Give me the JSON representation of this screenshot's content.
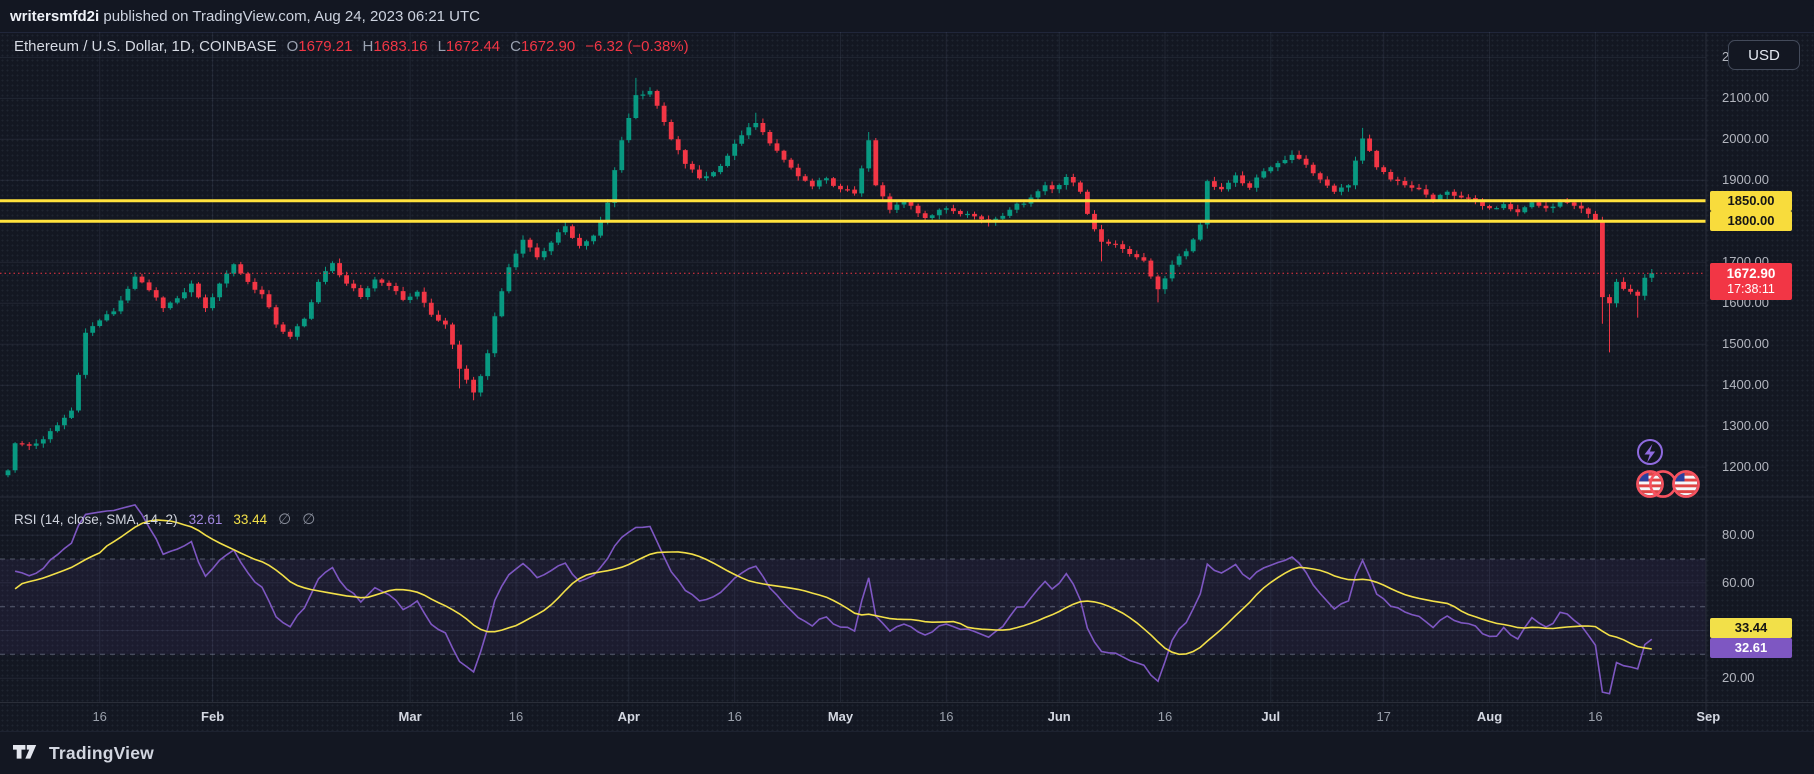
{
  "topbar": {
    "username": "writersmfd2i",
    "suffix": " published on TradingView.com, Aug 24, 2023 06:21 UTC"
  },
  "header": {
    "symbol_line": "Ethereum / U.S. Dollar, 1D, COINBASE",
    "o_key": "O",
    "o_val": "1679.21",
    "h_key": "H",
    "h_val": "1683.16",
    "l_key": "L",
    "l_val": "1672.44",
    "c_key": "C",
    "c_val": "1672.90",
    "change": "−6.32 (−0.38%)"
  },
  "currency_button": "USD",
  "price_axis": {
    "tick_labels": [
      "2200.00",
      "2100.00",
      "2000.00",
      "1900.00",
      "1800.00",
      "1700.00",
      "1600.00",
      "1500.00",
      "1400.00",
      "1300.00",
      "1200.00"
    ],
    "support_labels": [
      "1850.00",
      "1800.00"
    ],
    "last_price_label": "1672.90",
    "countdown": "17:38:11"
  },
  "rsi_pane": {
    "title": "RSI (14, close, SMA, 14, 2)",
    "rsi_value": "32.61",
    "ma_value": "33.44",
    "slot3": "∅",
    "slot4": "∅",
    "axis_tick_labels": [
      "80.00",
      "60.00",
      "40.00",
      "20.00"
    ],
    "rsi_label": "32.61",
    "ma_label": "33.44"
  },
  "footer": {
    "brand": "TradingView"
  },
  "colors": {
    "bg": "#131722",
    "up": "#089981",
    "down": "#f23645",
    "support_line": "#ffe13d",
    "support_label_bg": "#f8dc3c",
    "last_price": "#f23645",
    "rsi_line": "#7e57c2",
    "rsi_ma_line": "#f2e049",
    "grid": "rgba(160,173,204,0.10)",
    "dashed_level": "rgba(160,170,190,0.45)",
    "axis_text": "#b2b5be"
  },
  "chart_data": {
    "type": "candlestick",
    "title": "Ethereum / U.S. Dollar, 1D, COINBASE",
    "x_axis": "daily candles, Jan 2023 – Sep 2023 (day 0 = Jan 3, 2023)",
    "y_axis": "price (USD)",
    "ylim": [
      1127,
      2262
    ],
    "price_gridlines": [
      2200,
      2100,
      2000,
      1900,
      1800,
      1700,
      1600,
      1500,
      1400,
      1300,
      1200
    ],
    "support_levels": [
      1850,
      1800
    ],
    "last": {
      "open": 1679.21,
      "high": 1683.16,
      "low": 1672.44,
      "close": 1672.9,
      "change": -6.32,
      "change_pct": -0.38
    },
    "first_open": 1180,
    "close_anchors": [
      [
        0,
        1192
      ],
      [
        1,
        1258
      ],
      [
        3,
        1252
      ],
      [
        5,
        1268
      ],
      [
        7,
        1302
      ],
      [
        9,
        1338
      ],
      [
        10,
        1425
      ],
      [
        11,
        1528
      ],
      [
        13,
        1558
      ],
      [
        15,
        1580
      ],
      [
        17,
        1635
      ],
      [
        18,
        1665
      ],
      [
        20,
        1632
      ],
      [
        22,
        1588
      ],
      [
        24,
        1612
      ],
      [
        26,
        1648
      ],
      [
        28,
        1588
      ],
      [
        30,
        1648
      ],
      [
        32,
        1695
      ],
      [
        34,
        1652
      ],
      [
        36,
        1622
      ],
      [
        38,
        1548
      ],
      [
        40,
        1518
      ],
      [
        42,
        1562
      ],
      [
        44,
        1652
      ],
      [
        46,
        1698
      ],
      [
        48,
        1648
      ],
      [
        50,
        1615
      ],
      [
        52,
        1658
      ],
      [
        54,
        1642
      ],
      [
        56,
        1608
      ],
      [
        58,
        1628
      ],
      [
        60,
        1572
      ],
      [
        62,
        1548
      ],
      [
        64,
        1440,
        1392
      ],
      [
        66,
        1382,
        1363
      ],
      [
        67,
        1422
      ],
      [
        68,
        1478
      ],
      [
        69,
        1568
      ],
      [
        71,
        1688
      ],
      [
        73,
        1755
      ],
      [
        75,
        1712
      ],
      [
        77,
        1748
      ],
      [
        79,
        1788
      ],
      [
        81,
        1740
      ],
      [
        83,
        1765
      ],
      [
        84,
        1800
      ],
      [
        85,
        1845
      ],
      [
        86,
        1925
      ],
      [
        87,
        1998
      ],
      [
        88,
        2052
      ],
      [
        89,
        2108,
        null,
        2150
      ],
      [
        91,
        2118
      ],
      [
        92,
        2082
      ],
      [
        94,
        2000
      ],
      [
        96,
        1940
      ],
      [
        98,
        1905
      ],
      [
        100,
        1920
      ],
      [
        102,
        1960
      ],
      [
        104,
        2010
      ],
      [
        106,
        2040,
        null,
        2065
      ],
      [
        108,
        1990
      ],
      [
        110,
        1950
      ],
      [
        112,
        1910
      ],
      [
        114,
        1885
      ],
      [
        116,
        1905
      ],
      [
        118,
        1878
      ],
      [
        120,
        1868
      ],
      [
        122,
        1998,
        null,
        2018
      ],
      [
        123,
        1888
      ],
      [
        125,
        1828
      ],
      [
        127,
        1848
      ],
      [
        128,
        1838
      ],
      [
        130,
        1808
      ],
      [
        133,
        1832
      ],
      [
        136,
        1818
      ],
      [
        139,
        1798
      ],
      [
        142,
        1828
      ],
      [
        145,
        1858
      ],
      [
        147,
        1888
      ],
      [
        148,
        1878
      ],
      [
        150,
        1908
      ],
      [
        152,
        1872
      ],
      [
        153,
        1818
      ],
      [
        155,
        1750,
        1702
      ],
      [
        157,
        1744
      ],
      [
        159,
        1720
      ],
      [
        161,
        1704
      ],
      [
        163,
        1634,
        1602
      ],
      [
        165,
        1694
      ],
      [
        167,
        1727
      ],
      [
        169,
        1792
      ],
      [
        170,
        1898
      ],
      [
        172,
        1878
      ],
      [
        174,
        1912
      ],
      [
        176,
        1882
      ],
      [
        178,
        1922
      ],
      [
        180,
        1942
      ],
      [
        182,
        1962
      ],
      [
        184,
        1938
      ],
      [
        186,
        1902
      ],
      [
        188,
        1872
      ],
      [
        190,
        1888
      ],
      [
        192,
        2002,
        null,
        2028
      ],
      [
        194,
        1932
      ],
      [
        196,
        1902
      ],
      [
        198,
        1888
      ],
      [
        200,
        1878
      ],
      [
        202,
        1852
      ],
      [
        204,
        1872
      ],
      [
        206,
        1858
      ],
      [
        208,
        1852
      ],
      [
        210,
        1832
      ],
      [
        212,
        1842
      ],
      [
        214,
        1822
      ],
      [
        216,
        1846
      ],
      [
        218,
        1832
      ],
      [
        220,
        1848
      ],
      [
        222,
        1838
      ],
      [
        224,
        1818
      ],
      [
        225,
        1802
      ],
      [
        226,
        1615,
        1550
      ],
      [
        227,
        1600,
        1480
      ],
      [
        228,
        1652
      ],
      [
        229,
        1635
      ],
      [
        230,
        1628
      ],
      [
        231,
        1618,
        1565
      ],
      [
        232,
        1662
      ],
      [
        233,
        1672.9
      ]
    ],
    "time_ticks": [
      {
        "label": "16",
        "d": 13
      },
      {
        "label": "Feb",
        "d": 29,
        "major": true
      },
      {
        "label": "Mar",
        "d": 57,
        "major": true
      },
      {
        "label": "16",
        "d": 72
      },
      {
        "label": "Apr",
        "d": 88,
        "major": true
      },
      {
        "label": "16",
        "d": 103
      },
      {
        "label": "May",
        "d": 118,
        "major": true
      },
      {
        "label": "16",
        "d": 133
      },
      {
        "label": "Jun",
        "d": 149,
        "major": true
      },
      {
        "label": "16",
        "d": 164
      },
      {
        "label": "Jul",
        "d": 179,
        "major": true
      },
      {
        "label": "17",
        "d": 195
      },
      {
        "label": "Aug",
        "d": 210,
        "major": true
      },
      {
        "label": "16",
        "d": 225
      },
      {
        "label": "Sep",
        "d": 241,
        "major": true
      }
    ],
    "rsi": {
      "period": 14,
      "source": "close",
      "smoothing": "SMA",
      "smoothing_period": 14,
      "ylim": [
        10,
        96
      ],
      "solid_gridlines": [
        80,
        60,
        40,
        20
      ],
      "dashed_levels": [
        70,
        50,
        30
      ],
      "band": [
        30,
        70
      ],
      "current": 32.61,
      "ma_current": 33.44
    }
  }
}
